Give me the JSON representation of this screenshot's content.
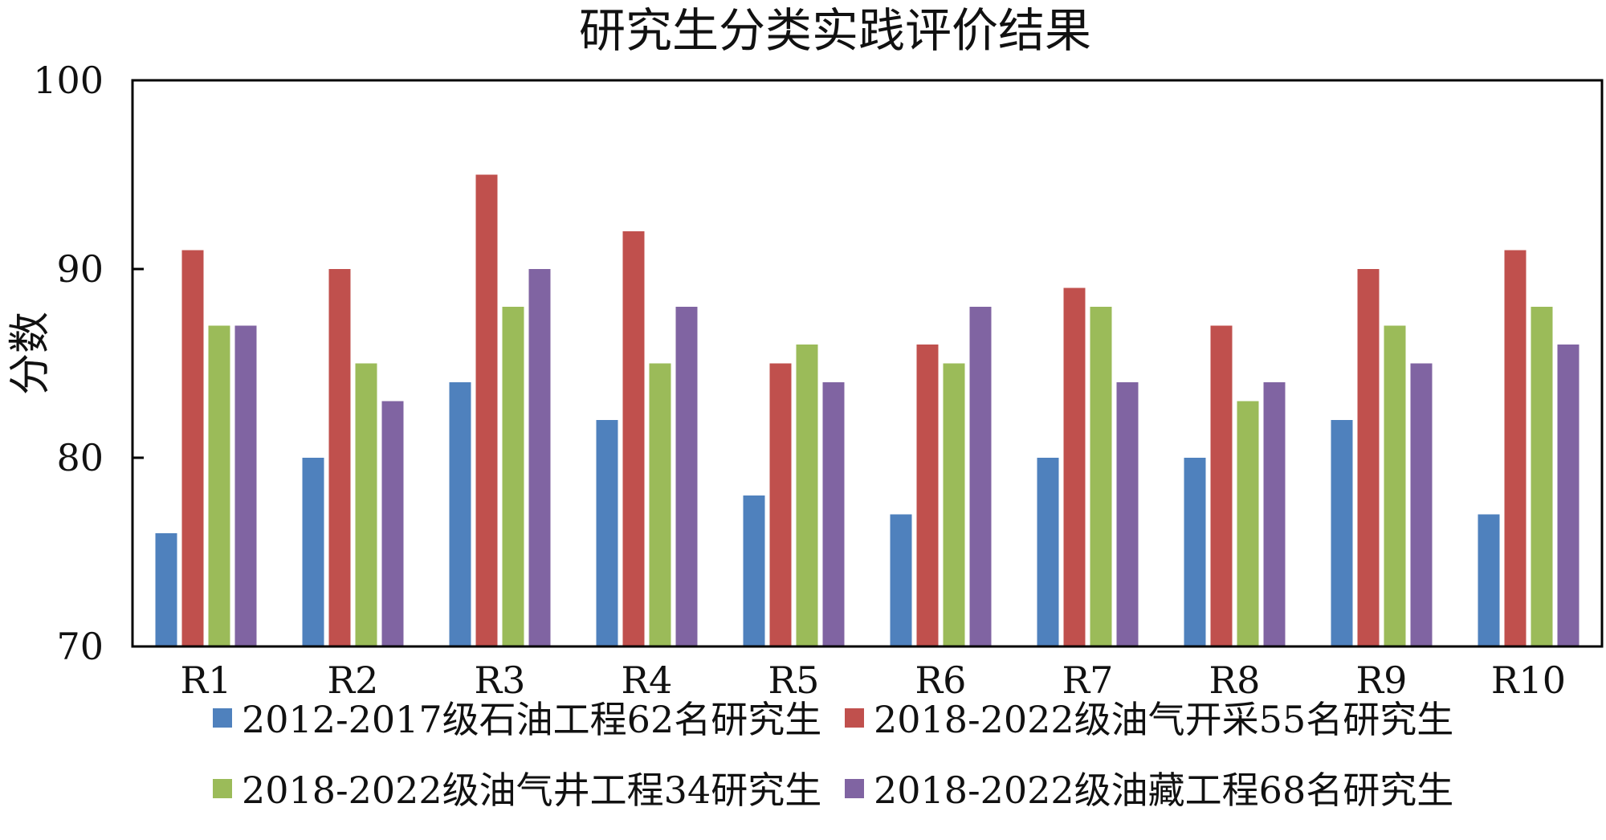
{
  "chart_data": {
    "type": "bar",
    "title": "研究生分类实践评价结果",
    "xlabel": "",
    "ylabel": "分数",
    "ylim": [
      70,
      100
    ],
    "yticks": [
      70,
      80,
      90,
      100
    ],
    "grid": false,
    "legend_position": "bottom",
    "categories": [
      "R1",
      "R2",
      "R3",
      "R4",
      "R5",
      "R6",
      "R7",
      "R8",
      "R9",
      "R10"
    ],
    "series": [
      {
        "name": "2012-2017级石油工程62名研究生",
        "color": "#4F81BD",
        "values": [
          76,
          80,
          84,
          82,
          78,
          77,
          80,
          80,
          82,
          77
        ]
      },
      {
        "name": "2018-2022级油气开采55名研究生",
        "color": "#C0504D",
        "values": [
          91,
          90,
          95,
          92,
          85,
          86,
          89,
          87,
          90,
          91
        ]
      },
      {
        "name": "2018-2022级油气井工程34研究生",
        "color": "#9BBB59",
        "values": [
          87,
          85,
          88,
          85,
          86,
          85,
          88,
          83,
          87,
          88
        ]
      },
      {
        "name": "2018-2022级油藏工程68名研究生",
        "color": "#8064A2",
        "values": [
          87,
          83,
          90,
          88,
          84,
          88,
          84,
          84,
          85,
          86
        ]
      }
    ]
  }
}
